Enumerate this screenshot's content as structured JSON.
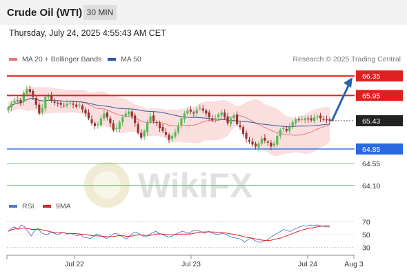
{
  "header": {
    "title": "Crude Oil (WTI)",
    "timeframe": "30 MIN"
  },
  "datetime": "Thursday, July 24, 2025 4:55:43 AM CET",
  "legend": {
    "ma20_bb": "MA 20 + Bollinger Bands",
    "ma50": "MA 50",
    "credit": "Research © 2025 Trading Central",
    "rsi": "RSI",
    "rsi_ma": "9MA"
  },
  "colors": {
    "ma20": "#e87878",
    "bb_fill": "#f9d3d3",
    "ma50": "#2c5aa0",
    "resistance": "#e02020",
    "support": "#2a6ae0",
    "support_minor": "#4caf50",
    "up_candle": "#55bb55",
    "down_candle": "#993333",
    "rsi": "#5577cc",
    "rsi_ma": "#dd2222",
    "current_price_bg": "#222222",
    "forecast_arrow": "#2a62b0",
    "watermark": "#c8a840"
  },
  "watermark": "WikiFX",
  "chart_data": {
    "type": "candlestick",
    "price_axis": {
      "ylim": [
        63.8,
        66.55
      ]
    },
    "x_ticks": [
      "Jul 22",
      "Jul 23",
      "Jul 24",
      "Aug 3"
    ],
    "levels": [
      {
        "value": 66.35,
        "label": "66.35",
        "kind": "resistance"
      },
      {
        "value": 65.95,
        "label": "65.95",
        "kind": "resistance"
      },
      {
        "value": 64.85,
        "label": "64.85",
        "kind": "support"
      },
      {
        "value": 64.55,
        "label": "64.55",
        "kind": "support_minor"
      },
      {
        "value": 64.1,
        "label": "64.10",
        "kind": "support_minor"
      }
    ],
    "current_price": {
      "value": 65.43,
      "label": "65.43"
    },
    "forecast_target": 66.35,
    "closes": [
      65.7,
      65.78,
      65.84,
      65.86,
      65.8,
      66.0,
      66.08,
      66.02,
      65.92,
      65.76,
      65.58,
      65.7,
      65.92,
      65.94,
      65.84,
      65.8,
      65.78,
      65.76,
      65.74,
      65.78,
      65.8,
      65.76,
      65.72,
      65.76,
      65.66,
      65.58,
      65.48,
      65.38,
      65.32,
      65.36,
      65.48,
      65.58,
      65.5,
      65.38,
      65.24,
      65.28,
      65.4,
      65.5,
      65.58,
      65.62,
      65.52,
      65.38,
      65.18,
      65.08,
      65.22,
      65.4,
      65.52,
      65.42,
      65.38,
      65.28,
      65.22,
      65.14,
      65.04,
      65.12,
      65.2,
      65.32,
      65.48,
      65.58,
      65.64,
      65.62,
      65.58,
      65.66,
      65.7,
      65.64,
      65.58,
      65.5,
      65.44,
      65.48,
      65.56,
      65.6,
      65.5,
      65.38,
      65.48,
      65.54,
      65.36,
      65.3,
      65.16,
      65.06,
      65.0,
      64.94,
      64.9,
      64.96,
      65.06,
      65.02,
      64.98,
      64.9,
      64.96,
      65.12,
      65.24,
      65.28,
      65.22,
      65.3,
      65.4,
      65.46,
      65.44,
      65.46,
      65.48,
      65.46,
      65.44,
      65.5,
      65.52,
      65.48,
      65.46,
      65.44,
      65.43
    ],
    "rsi_axis": {
      "ylim": [
        20,
        80
      ],
      "ticks": [
        70,
        50,
        30
      ]
    },
    "rsi": [
      55,
      60,
      62,
      58,
      65,
      62,
      55,
      48,
      56,
      60,
      53,
      51,
      50,
      54,
      52,
      50,
      52,
      53,
      51,
      52,
      50,
      48,
      50,
      46,
      45,
      44,
      47,
      51,
      49,
      46,
      44,
      47,
      51,
      52,
      49,
      46,
      43,
      48,
      52,
      54,
      51,
      48,
      46,
      50,
      53,
      55,
      52,
      50,
      48,
      46,
      48,
      51,
      53,
      55,
      54,
      52,
      55,
      57,
      56,
      54,
      52,
      55,
      53,
      51,
      50,
      52,
      51,
      49,
      46,
      45,
      44,
      43,
      38,
      42,
      45,
      41,
      39,
      38,
      40,
      42,
      46,
      49,
      52,
      55,
      58,
      56,
      55,
      58,
      60,
      62,
      64,
      63,
      65,
      64,
      65,
      64,
      63,
      62,
      62
    ]
  }
}
